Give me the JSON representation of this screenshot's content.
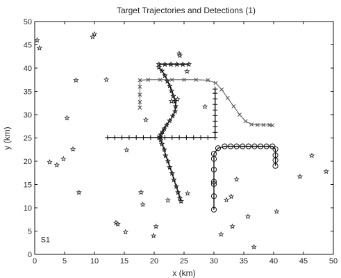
{
  "chart_data": {
    "type": "scatter",
    "title": "Target Trajectories and Detections (1)",
    "xlabel": "x (km)",
    "ylabel": "y (km)",
    "xlim": [
      0,
      50
    ],
    "ylim": [
      0,
      50
    ],
    "xticks": [
      0,
      5,
      10,
      15,
      20,
      25,
      30,
      35,
      40,
      45,
      50
    ],
    "yticks": [
      0,
      5,
      10,
      15,
      20,
      25,
      30,
      35,
      40,
      45,
      50
    ],
    "grid": false,
    "annotation": "S1",
    "series": [
      {
        "marker": "star",
        "style": "markers",
        "color": "#333333",
        "points": [
          [
            0.4,
            46
          ],
          [
            0.8,
            44.3
          ],
          [
            2.5,
            19.8
          ],
          [
            3.7,
            19.2
          ],
          [
            4.8,
            20.5
          ],
          [
            5.4,
            29.3
          ],
          [
            6.4,
            22.6
          ],
          [
            6.9,
            37.4
          ],
          [
            7.4,
            13.3
          ],
          [
            9.7,
            46.7
          ],
          [
            10,
            47.3
          ],
          [
            12,
            37.5
          ],
          [
            13.6,
            6.8
          ],
          [
            13.9,
            6.5
          ],
          [
            15.2,
            4.8
          ],
          [
            15.4,
            22.4
          ],
          [
            17.8,
            13.3
          ],
          [
            18.1,
            10.7
          ],
          [
            18.6,
            28.9
          ],
          [
            19.9,
            4
          ],
          [
            20.3,
            6
          ],
          [
            22.3,
            11.6
          ],
          [
            22.9,
            32.9
          ],
          [
            23.9,
            33.3
          ],
          [
            24.2,
            43.1
          ],
          [
            24.3,
            42.7
          ],
          [
            25.5,
            39.3
          ],
          [
            25.6,
            13.1
          ],
          [
            28.5,
            31.7
          ],
          [
            31.2,
            4.3
          ],
          [
            32.1,
            11.7
          ],
          [
            32.9,
            12.4
          ],
          [
            33.1,
            6
          ],
          [
            33.8,
            16.1
          ],
          [
            35.7,
            8.1
          ],
          [
            36.7,
            1.6
          ],
          [
            40.5,
            9.2
          ],
          [
            44.4,
            16.7
          ],
          [
            46.4,
            21.2
          ],
          [
            48.8,
            17.8
          ]
        ]
      },
      {
        "marker": "star",
        "style": "line+markers",
        "color": "#111111",
        "points": [
          [
            20.8,
            40.8
          ],
          [
            21.8,
            40.8
          ],
          [
            22.8,
            40.8
          ],
          [
            23.8,
            40.8
          ],
          [
            24.8,
            40.8
          ],
          [
            25.8,
            40.8
          ]
        ]
      },
      {
        "marker": "star",
        "style": "line+markers",
        "color": "#111111",
        "points": [
          [
            20.8,
            40.2
          ],
          [
            21.3,
            39.4
          ],
          [
            21.8,
            38.4
          ],
          [
            22.2,
            37.2
          ],
          [
            22.6,
            36.2
          ],
          [
            22.9,
            35.1
          ],
          [
            23.2,
            34
          ],
          [
            23.5,
            32.9
          ],
          [
            23.6,
            31.8
          ],
          [
            23.5,
            30.7
          ],
          [
            23.1,
            29.7
          ],
          [
            22.6,
            28.7
          ],
          [
            22.1,
            27.8
          ],
          [
            21.7,
            27
          ],
          [
            21.4,
            26.3
          ],
          [
            21.1,
            25.7
          ],
          [
            21,
            25.2
          ],
          [
            21.1,
            24.6
          ],
          [
            21.3,
            23.7
          ],
          [
            21.7,
            22.5
          ],
          [
            21.9,
            21.2
          ],
          [
            22.3,
            20
          ],
          [
            22.6,
            18.7
          ],
          [
            23,
            17.4
          ],
          [
            23.3,
            16
          ],
          [
            23.7,
            14.6
          ],
          [
            24,
            13.3
          ],
          [
            24.3,
            12.1
          ],
          [
            24.5,
            11.4
          ]
        ]
      },
      {
        "marker": "plus",
        "style": "line+markers",
        "color": "#111111",
        "points": [
          [
            12.2,
            25.1
          ],
          [
            13.4,
            25.1
          ],
          [
            14.6,
            25.1
          ],
          [
            15.8,
            25.1
          ],
          [
            17,
            25.1
          ],
          [
            18.2,
            25.1
          ],
          [
            19.4,
            25.1
          ],
          [
            20.6,
            25.1
          ],
          [
            21.8,
            25.1
          ],
          [
            23,
            25.1
          ],
          [
            24.2,
            25.1
          ],
          [
            25.4,
            25.1
          ],
          [
            26.6,
            25.1
          ],
          [
            27.8,
            25.1
          ],
          [
            29,
            25.1
          ],
          [
            30.2,
            25.1
          ],
          [
            30.2,
            26.2
          ],
          [
            30.2,
            27.4
          ],
          [
            30.2,
            28.6
          ],
          [
            30.2,
            29.8
          ],
          [
            30.2,
            31
          ],
          [
            30.2,
            32.2
          ],
          [
            30.2,
            33.4
          ],
          [
            30.2,
            34.6
          ],
          [
            30.2,
            35.5
          ]
        ]
      },
      {
        "marker": "x",
        "style": "line+markers",
        "color": "#555555",
        "points": [
          [
            17.6,
            31.5
          ],
          [
            17.6,
            32.7
          ],
          [
            17.6,
            34.3
          ],
          [
            17.6,
            36
          ],
          [
            17.6,
            37.4
          ],
          [
            19,
            37.5
          ],
          [
            21,
            37.5
          ],
          [
            23,
            37.5
          ],
          [
            25,
            37.5
          ],
          [
            27,
            37.5
          ],
          [
            29,
            37.4
          ],
          [
            30.3,
            36.8
          ],
          [
            31.3,
            35.4
          ],
          [
            32.3,
            33.6
          ],
          [
            33.3,
            31.8
          ],
          [
            34.3,
            30
          ],
          [
            35.3,
            28.6
          ],
          [
            36.3,
            27.9
          ],
          [
            37.3,
            27.8
          ],
          [
            38.3,
            27.8
          ],
          [
            39.3,
            27.8
          ],
          [
            39.8,
            27.7
          ]
        ]
      },
      {
        "marker": "circle",
        "style": "line+markers",
        "color": "#111111",
        "points": [
          [
            30,
            9.6
          ],
          [
            30,
            12.5
          ],
          [
            30,
            15.1
          ],
          [
            30,
            15.6
          ],
          [
            30,
            18.2
          ],
          [
            30,
            20.5
          ],
          [
            30,
            21.6
          ],
          [
            30.7,
            22.8
          ],
          [
            31.8,
            23.2
          ],
          [
            32.8,
            23.2
          ],
          [
            33.8,
            23.2
          ],
          [
            34.8,
            23.2
          ],
          [
            35.8,
            23.2
          ],
          [
            36.8,
            23.2
          ],
          [
            37.8,
            23.2
          ],
          [
            38.8,
            23.2
          ],
          [
            39.8,
            23.2
          ],
          [
            40.3,
            22.6
          ],
          [
            40.3,
            21.3
          ],
          [
            40.3,
            20.2
          ],
          [
            40.3,
            19
          ]
        ]
      }
    ]
  }
}
